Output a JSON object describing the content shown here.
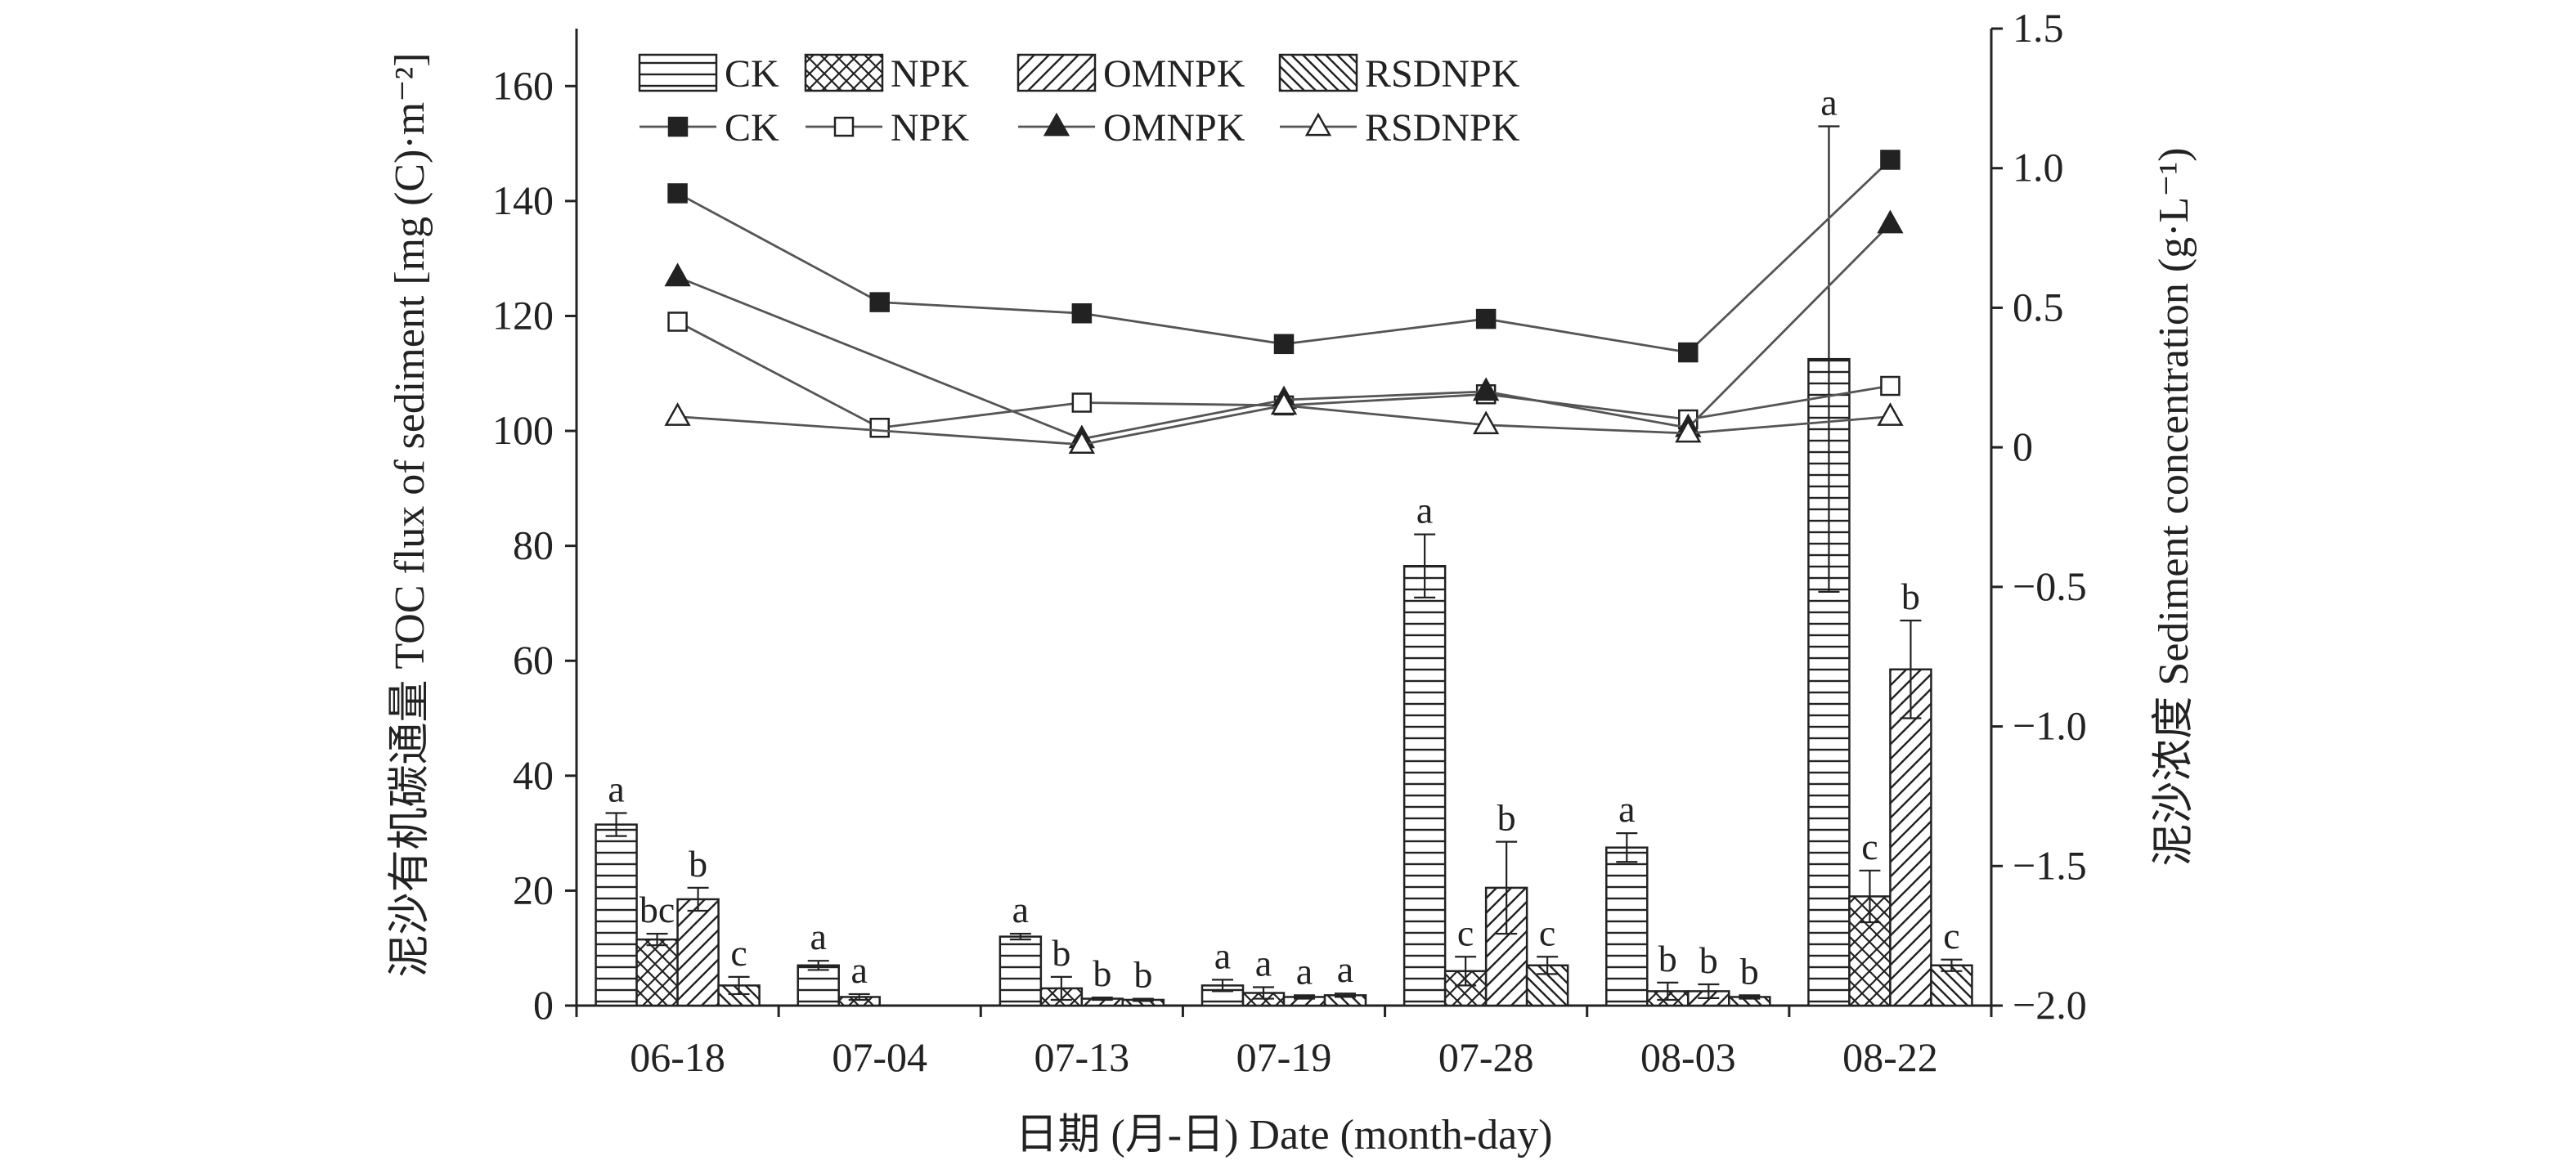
{
  "chart_data": {
    "type": "bar",
    "combo": "bar + line (dual y-axis)",
    "categories": [
      "06-18",
      "07-04",
      "07-13",
      "07-19",
      "07-28",
      "08-03",
      "08-22"
    ],
    "xlabel": "日期 (月-日) Date (month-day)",
    "ylabel": "泥沙有机碳通量 TOC flux of sediment [mg (C)·m⁻²]",
    "ylabel_right": "泥沙浓度 Sediment concentration (g·L⁻¹)",
    "ylim": [
      0,
      170
    ],
    "yticks": [
      0,
      20,
      40,
      60,
      80,
      100,
      120,
      140,
      160
    ],
    "ylim_right": [
      -2.0,
      1.5
    ],
    "yticks_right": [
      "−2.0",
      "−1.5",
      "−1.0",
      "−0.5",
      "0",
      "0.5",
      "1.0",
      "1.5"
    ],
    "yticks_right_values": [
      -2.0,
      -1.5,
      -1.0,
      -0.5,
      0,
      0.5,
      1.0,
      1.5
    ],
    "grid": false,
    "legend_position": "top-left",
    "bar_series": [
      {
        "name": "CK",
        "pattern": "horizontal-lines",
        "values": [
          31.5,
          7.0,
          12.0,
          3.5,
          76.5,
          27.5,
          112.5
        ],
        "errors": [
          2.0,
          0.8,
          0.5,
          1.0,
          5.5,
          2.5,
          40.5
        ],
        "letters": [
          "a",
          "a",
          "a",
          "a",
          "a",
          "a",
          "a"
        ]
      },
      {
        "name": "NPK",
        "pattern": "crosshatch",
        "values": [
          11.5,
          1.5,
          3.0,
          2.2,
          6.0,
          2.5,
          19.0
        ],
        "errors": [
          1.0,
          0.5,
          2.0,
          1.0,
          2.5,
          1.5,
          4.5
        ],
        "letters": [
          "bc",
          "a",
          "b",
          "a",
          "c",
          "b",
          "c"
        ]
      },
      {
        "name": "OMNPK",
        "pattern": "forward-diagonal",
        "values": [
          18.5,
          null,
          1.2,
          1.5,
          20.5,
          2.5,
          58.5
        ],
        "errors": [
          2.0,
          null,
          0.2,
          0.3,
          8.0,
          1.2,
          8.5
        ],
        "letters": [
          "b",
          "",
          "b",
          "a",
          "b",
          "b",
          "b"
        ]
      },
      {
        "name": "RSDNPK",
        "pattern": "back-diagonal",
        "values": [
          3.5,
          null,
          1.0,
          1.8,
          7.0,
          1.5,
          7.0
        ],
        "errors": [
          1.5,
          null,
          0.2,
          0.3,
          1.5,
          0.3,
          1.0
        ],
        "letters": [
          "c",
          "",
          "b",
          "a",
          "c",
          "b",
          "c"
        ]
      }
    ],
    "line_series": [
      {
        "name": "CK",
        "marker": "filled-square",
        "values": [
          0.91,
          0.52,
          0.48,
          0.37,
          0.46,
          0.34,
          1.03
        ]
      },
      {
        "name": "NPK",
        "marker": "open-square",
        "values": [
          0.45,
          0.07,
          0.16,
          0.15,
          0.19,
          0.1,
          0.22
        ]
      },
      {
        "name": "OMNPK",
        "marker": "filled-triangle",
        "values": [
          0.61,
          null,
          0.03,
          0.17,
          0.2,
          0.07,
          0.8
        ]
      },
      {
        "name": "RSDNPK",
        "marker": "open-triangle",
        "values": [
          0.11,
          null,
          0.01,
          0.15,
          0.08,
          0.05,
          0.11
        ]
      }
    ]
  }
}
